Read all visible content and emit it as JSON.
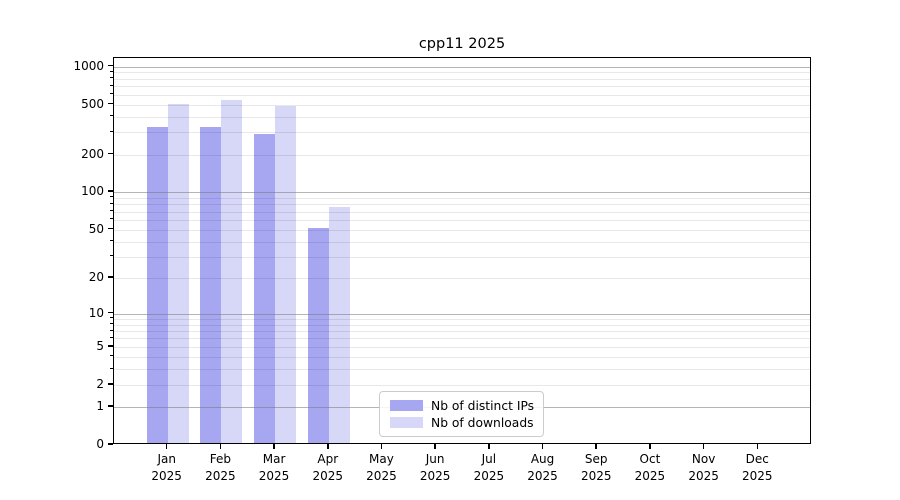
{
  "chart_data": {
    "type": "bar",
    "title": "cpp11 2025",
    "categories": [
      "Jan",
      "Feb",
      "Mar",
      "Apr",
      "May",
      "Jun",
      "Jul",
      "Aug",
      "Sep",
      "Oct",
      "Nov",
      "Dec"
    ],
    "category_sub": "2025",
    "series": [
      {
        "name": "Nb of distinct IPs",
        "color": "#a6a6f1",
        "values": [
          320,
          322,
          280,
          50,
          null,
          null,
          null,
          null,
          null,
          null,
          null,
          null
        ]
      },
      {
        "name": "Nb of downloads",
        "color": "#d7d7f8",
        "values": [
          483,
          525,
          465,
          73,
          null,
          null,
          null,
          null,
          null,
          null,
          null,
          null
        ]
      }
    ],
    "y_scale": "log1p",
    "ylim": [
      0,
      1170
    ],
    "y_ticks": [
      0,
      1,
      2,
      5,
      10,
      20,
      50,
      100,
      200,
      500,
      1000
    ],
    "grid_major": [
      1,
      10,
      100,
      1000
    ],
    "grid_minor": [
      2,
      3,
      4,
      5,
      6,
      7,
      8,
      9,
      20,
      30,
      40,
      50,
      60,
      70,
      80,
      90,
      200,
      300,
      400,
      500,
      600,
      700,
      800,
      900
    ],
    "grid": "on",
    "legend_position": "bottom-center",
    "colors": {
      "spine": "#000000",
      "grid_major": "#b8b8b8",
      "grid_minor": "#ececec",
      "background": "#ffffff"
    }
  }
}
